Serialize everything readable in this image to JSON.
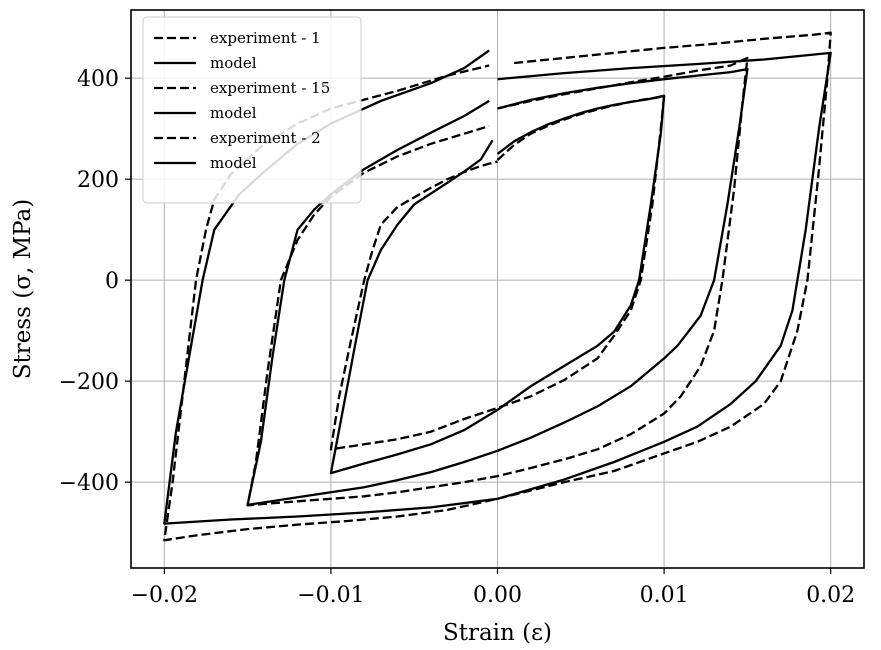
{
  "chart_data": {
    "type": "line",
    "xlabel": "Strain (ε)",
    "ylabel": "Stress (σ, MPa)",
    "xlim": [
      -0.022,
      0.022
    ],
    "ylim": [
      -570,
      535
    ],
    "xticks": [
      -0.02,
      -0.01,
      0.0,
      0.01,
      0.02
    ],
    "xtick_labels": [
      "−0.02",
      "−0.01",
      "0.00",
      "0.01",
      "0.02"
    ],
    "yticks": [
      -400,
      -200,
      0,
      200,
      400
    ],
    "ytick_labels": [
      "−400",
      "−200",
      "0",
      "200",
      "400"
    ],
    "grid": true,
    "legend_placement": "top-left",
    "series": [
      {
        "name": "experiment - 1",
        "style": "dashed",
        "color": "#000000",
        "x": [
          0.0,
          0.001,
          0.002,
          0.003,
          0.004,
          0.005,
          0.006,
          0.007,
          0.008,
          0.0085,
          0.009,
          0.0095,
          0.01,
          0.0098,
          0.0093,
          0.0086,
          0.008,
          0.007,
          0.006,
          0.004,
          0.002,
          0.0,
          -0.002,
          -0.004,
          -0.006,
          -0.008,
          -0.01,
          -0.0095,
          -0.0088,
          -0.008,
          -0.0075,
          -0.007,
          -0.006,
          -0.004,
          -0.003,
          -0.002,
          -0.001,
          0.0
        ],
        "y": [
          238,
          268,
          290,
          305,
          318,
          329,
          338,
          346,
          353,
          356,
          359,
          361,
          365,
          300,
          150,
          0,
          -60,
          -110,
          -155,
          -198,
          -230,
          -253,
          -275,
          -300,
          -315,
          -325,
          -335,
          -230,
          -120,
          0,
          60,
          110,
          145,
          183,
          200,
          214,
          226,
          235
        ]
      },
      {
        "name": "model",
        "style": "solid",
        "color": "#000000",
        "x": [
          0.0,
          0.001,
          0.002,
          0.003,
          0.004,
          0.005,
          0.006,
          0.007,
          0.008,
          0.009,
          0.01,
          0.0098,
          0.0092,
          0.0085,
          0.008,
          0.007,
          0.006,
          0.005,
          0.004,
          0.002,
          0.0,
          -0.002,
          -0.004,
          -0.006,
          -0.008,
          -0.01,
          -0.0093,
          -0.0085,
          -0.0078,
          -0.007,
          -0.006,
          -0.005,
          -0.003,
          -0.002,
          -0.001,
          -0.0003
        ],
        "y": [
          250,
          275,
          293,
          308,
          320,
          331,
          340,
          347,
          353,
          358,
          365,
          290,
          150,
          0,
          -50,
          -102,
          -130,
          -150,
          -170,
          -210,
          -257,
          -297,
          -325,
          -345,
          -363,
          -382,
          -260,
          -120,
          0,
          60,
          110,
          150,
          193,
          215,
          239,
          277
        ]
      },
      {
        "name": "experiment - 15",
        "style": "dashed",
        "color": "#000000",
        "x": [
          0.0,
          0.002,
          0.004,
          0.006,
          0.008,
          0.01,
          0.012,
          0.014,
          0.015,
          0.0147,
          0.0142,
          0.0135,
          0.013,
          0.0122,
          0.011,
          0.01,
          0.008,
          0.006,
          0.004,
          0.002,
          0.0,
          -0.002,
          -0.004,
          -0.006,
          -0.008,
          -0.01,
          -0.012,
          -0.014,
          -0.015,
          -0.0145,
          -0.0138,
          -0.013,
          -0.012,
          -0.011,
          -0.01,
          -0.008,
          -0.006,
          -0.004,
          -0.002,
          -0.0005
        ],
        "y": [
          340,
          355,
          368,
          380,
          392,
          403,
          415,
          425,
          440,
          350,
          180,
          0,
          -100,
          -170,
          -230,
          -264,
          -305,
          -335,
          -355,
          -372,
          -388,
          -400,
          -410,
          -420,
          -428,
          -433,
          -438,
          -443,
          -446,
          -360,
          -180,
          0,
          80,
          130,
          165,
          213,
          245,
          270,
          290,
          305
        ]
      },
      {
        "name": "model",
        "style": "solid",
        "color": "#000000",
        "x": [
          0.0,
          0.002,
          0.004,
          0.006,
          0.008,
          0.01,
          0.012,
          0.014,
          0.015,
          0.0145,
          0.0138,
          0.013,
          0.0122,
          0.0115,
          0.0108,
          0.01,
          0.008,
          0.006,
          0.004,
          0.002,
          0.0,
          -0.002,
          -0.004,
          -0.006,
          -0.008,
          -0.01,
          -0.012,
          -0.014,
          -0.015,
          -0.0142,
          -0.0135,
          -0.0128,
          -0.012,
          -0.011,
          -0.01,
          -0.008,
          -0.006,
          -0.004,
          -0.002,
          -0.0005
        ],
        "y": [
          340,
          357,
          370,
          381,
          390,
          398,
          405,
          412,
          418,
          300,
          150,
          0,
          -70,
          -100,
          -130,
          -155,
          -210,
          -250,
          -282,
          -312,
          -338,
          -360,
          -380,
          -396,
          -410,
          -420,
          -430,
          -440,
          -445,
          -320,
          -150,
          0,
          100,
          140,
          170,
          220,
          258,
          292,
          325,
          355
        ]
      },
      {
        "name": "experiment - 2",
        "style": "dashed",
        "color": "#000000",
        "x": [
          0.001,
          0.004,
          0.007,
          0.01,
          0.013,
          0.016,
          0.019,
          0.02,
          0.0198,
          0.0193,
          0.0186,
          0.018,
          0.0174,
          0.017,
          0.016,
          0.014,
          0.012,
          0.01,
          0.007,
          0.004,
          0.0,
          -0.003,
          -0.006,
          -0.009,
          -0.012,
          -0.015,
          -0.018,
          -0.02,
          -0.0195,
          -0.0188,
          -0.0181,
          -0.0175,
          -0.017,
          -0.016,
          -0.014,
          -0.012,
          -0.01,
          -0.006,
          -0.003,
          -0.0005
        ],
        "y": [
          430,
          440,
          450,
          460,
          468,
          478,
          486,
          490,
          400,
          220,
          0,
          -100,
          -160,
          -200,
          -245,
          -290,
          -320,
          -343,
          -378,
          -400,
          -433,
          -455,
          -468,
          -477,
          -484,
          -493,
          -505,
          -515,
          -400,
          -200,
          0,
          100,
          160,
          210,
          270,
          310,
          340,
          375,
          405,
          425
        ]
      },
      {
        "name": "model",
        "style": "solid",
        "color": "#000000",
        "x": [
          0.0,
          0.004,
          0.008,
          0.012,
          0.016,
          0.02,
          0.0193,
          0.0185,
          0.0177,
          0.017,
          0.0155,
          0.014,
          0.012,
          0.01,
          0.007,
          0.004,
          0.0,
          -0.004,
          -0.008,
          -0.012,
          -0.016,
          -0.02,
          -0.0193,
          -0.0185,
          -0.0177,
          -0.017,
          -0.0155,
          -0.014,
          -0.012,
          -0.01,
          -0.007,
          -0.004,
          -0.002,
          -0.0005
        ],
        "y": [
          398,
          410,
          420,
          428,
          437,
          450,
          300,
          100,
          -60,
          -130,
          -200,
          -245,
          -290,
          -320,
          -360,
          -395,
          -433,
          -450,
          -460,
          -468,
          -474,
          -482,
          -300,
          -150,
          0,
          100,
          170,
          215,
          270,
          310,
          355,
          390,
          420,
          455
        ]
      }
    ]
  }
}
